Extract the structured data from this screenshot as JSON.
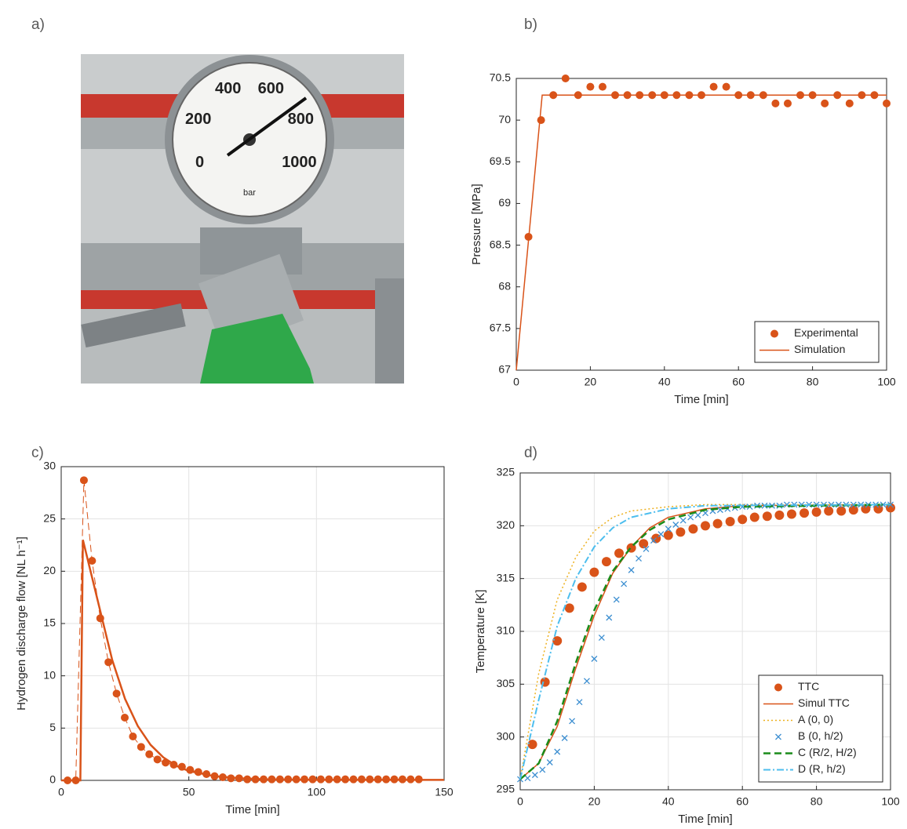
{
  "panels": [
    "a)",
    "b)",
    "c)",
    "d)"
  ],
  "photo": {
    "dial_labels": [
      0,
      200,
      400,
      600,
      800,
      1000
    ],
    "unit": "bar"
  },
  "chart_data": [
    {
      "type": "line",
      "xlabel": "Time [min]",
      "ylabel": "Pressure [MPa]",
      "xlim": [
        0,
        100
      ],
      "xticks": [
        0,
        20,
        40,
        60,
        80,
        100
      ],
      "ylim": [
        67,
        70.5
      ],
      "yticks": [
        67,
        67.5,
        68,
        68.5,
        69,
        69.5,
        70,
        70.5
      ],
      "grid": false,
      "legend": "lower right",
      "series": [
        {
          "name": "Experimental",
          "color": "#d95319",
          "marker": "circle",
          "x": [
            3.3,
            6.7,
            10,
            13.3,
            16.7,
            20,
            23.3,
            26.7,
            30,
            33.3,
            36.7,
            40,
            43.3,
            46.7,
            50,
            53.3,
            56.7,
            60,
            63.3,
            66.7,
            70,
            73.3,
            76.7,
            80,
            83.3,
            86.7,
            90,
            93.3,
            96.7,
            100
          ],
          "values": [
            68.6,
            70.0,
            70.3,
            70.5,
            70.3,
            70.4,
            70.4,
            70.3,
            70.3,
            70.3,
            70.3,
            70.3,
            70.3,
            70.3,
            70.3,
            70.4,
            70.4,
            70.3,
            70.3,
            70.3,
            70.2,
            70.2,
            70.3,
            70.3,
            70.2,
            70.3,
            70.2,
            70.3,
            70.3,
            70.2
          ]
        },
        {
          "name": "Simulation",
          "color": "#d95319",
          "linestyle": "solid",
          "x": [
            0,
            7,
            100
          ],
          "values": [
            67,
            70.3,
            70.3
          ]
        }
      ]
    },
    {
      "type": "line",
      "xlabel": "Time [min]",
      "ylabel": "Hydrogen discharge flow [NL h⁻¹]",
      "xlim": [
        0,
        150
      ],
      "xticks": [
        0,
        50,
        100,
        150
      ],
      "ylim": [
        0,
        30
      ],
      "yticks": [
        0,
        5,
        10,
        15,
        20,
        25,
        30
      ],
      "grid": true,
      "series": [
        {
          "color": "#d95319",
          "marker": "circle",
          "linestyle": "dashed",
          "x": [
            2.5,
            5.7,
            8.9,
            12.1,
            15.3,
            18.5,
            21.7,
            24.9,
            28.1,
            31.3,
            34.5,
            37.7,
            40.9,
            44.1,
            47.3,
            50.5,
            53.7,
            56.9,
            60.1,
            63.3,
            66.5,
            69.7,
            72.9,
            76.1,
            79.3,
            82.5,
            85.7,
            88.9,
            92.1,
            95.3,
            98.5,
            101.7,
            104.9,
            108.1,
            111.3,
            114.5,
            117.7,
            120.9,
            124.1,
            127.3,
            130.5,
            133.7,
            136.9,
            140.1
          ],
          "values": [
            0,
            0,
            28.7,
            21.0,
            15.5,
            11.3,
            8.3,
            6.0,
            4.2,
            3.2,
            2.5,
            2.0,
            1.7,
            1.5,
            1.3,
            1.0,
            0.8,
            0.6,
            0.4,
            0.3,
            0.2,
            0.2,
            0.1,
            0.1,
            0.1,
            0.1,
            0.1,
            0.1,
            0.1,
            0.1,
            0.1,
            0.1,
            0.1,
            0.1,
            0.1,
            0.1,
            0.1,
            0.1,
            0.1,
            0.1,
            0.1,
            0.1,
            0.1,
            0.1
          ]
        },
        {
          "color": "#d95319",
          "linestyle": "solid",
          "line_width": 2.5,
          "x": [
            0,
            7.5,
            8.5,
            12.5,
            15,
            20,
            25,
            30,
            35,
            40,
            45,
            50,
            60,
            70,
            80,
            100,
            150
          ],
          "values": [
            0,
            0,
            23,
            19,
            16.5,
            11.5,
            7.8,
            5.2,
            3.4,
            2.2,
            1.4,
            0.9,
            0.4,
            0.2,
            0.1,
            0.05,
            0.05
          ]
        }
      ]
    },
    {
      "type": "line",
      "xlabel": "Time [min]",
      "ylabel": "Temperature [K]",
      "xlim": [
        0,
        100
      ],
      "xticks": [
        0,
        20,
        40,
        60,
        80,
        100
      ],
      "ylim": [
        295,
        325
      ],
      "yticks": [
        295,
        300,
        305,
        310,
        315,
        320,
        325
      ],
      "grid": true,
      "legend": "lower right",
      "series": [
        {
          "name": "TTC",
          "color": "#d95319",
          "marker": "circle",
          "x": [
            3.3,
            6.7,
            10,
            13.3,
            16.7,
            20,
            23.3,
            26.7,
            30,
            33.3,
            36.7,
            40,
            43.3,
            46.7,
            50,
            53.3,
            56.7,
            60,
            63.3,
            66.7,
            70,
            73.3,
            76.7,
            80,
            83.3,
            86.7,
            90,
            93.3,
            96.7,
            100
          ],
          "values": [
            299.3,
            305.2,
            309.1,
            312.2,
            314.2,
            315.6,
            316.6,
            317.4,
            317.9,
            318.3,
            318.8,
            319.1,
            319.4,
            319.7,
            320.0,
            320.2,
            320.4,
            320.6,
            320.8,
            320.9,
            321.0,
            321.1,
            321.2,
            321.3,
            321.4,
            321.4,
            321.5,
            321.6,
            321.6,
            321.7
          ]
        },
        {
          "name": "Simul TTC",
          "color": "#d95319",
          "linestyle": "solid",
          "x": [
            0,
            5,
            10,
            15,
            20,
            25,
            30,
            35,
            40,
            50,
            60,
            100
          ],
          "values": [
            296,
            297.5,
            301,
            306.5,
            311.5,
            315.5,
            318,
            319.8,
            320.8,
            321.6,
            321.9,
            322
          ]
        },
        {
          "name": "A (0, 0)",
          "color": "#edb120",
          "linestyle": "dotted",
          "x": [
            0,
            5,
            10,
            15,
            20,
            25,
            30,
            40,
            50,
            100
          ],
          "values": [
            296,
            306,
            313,
            317,
            319.5,
            320.8,
            321.4,
            321.8,
            322,
            322
          ]
        },
        {
          "name": "B (0, h/2)",
          "color": "#3d8fd1",
          "marker": "cross",
          "x": [
            0,
            2,
            4,
            6,
            8,
            10,
            12,
            14,
            16,
            18,
            20,
            22,
            24,
            26,
            28,
            30,
            32,
            34,
            36,
            38,
            40,
            42,
            44,
            46,
            48,
            50,
            52,
            54,
            56,
            58,
            60,
            62,
            64,
            66,
            68,
            70,
            72,
            74,
            76,
            78,
            80,
            82,
            84,
            86,
            88,
            90,
            92,
            94,
            96,
            98,
            100
          ],
          "values": [
            296,
            296.1,
            296.4,
            296.9,
            297.6,
            298.6,
            299.9,
            301.5,
            303.3,
            305.3,
            307.4,
            309.4,
            311.3,
            313.0,
            314.5,
            315.8,
            316.9,
            317.8,
            318.6,
            319.2,
            319.7,
            320.1,
            320.5,
            320.8,
            321.0,
            321.2,
            321.4,
            321.5,
            321.6,
            321.7,
            321.8,
            321.8,
            321.9,
            321.9,
            321.9,
            321.9,
            322,
            322,
            322,
            322,
            322,
            322,
            322,
            322,
            322,
            322,
            322,
            322,
            322,
            322,
            322
          ]
        },
        {
          "name": "C (R/2, H/2)",
          "color": "#1a8c1a",
          "linestyle": "dashed",
          "line_width": 2.5,
          "x": [
            0,
            5,
            10,
            15,
            20,
            25,
            30,
            35,
            40,
            50,
            60,
            100
          ],
          "values": [
            296,
            297.5,
            301.5,
            307,
            312,
            315.7,
            318,
            319.6,
            320.6,
            321.5,
            321.8,
            322
          ]
        },
        {
          "name": "D (R, h/2)",
          "color": "#4dbeee",
          "linestyle": "dashdot",
          "line_width": 2,
          "x": [
            0,
            5,
            10,
            15,
            20,
            25,
            30,
            40,
            50,
            100
          ],
          "values": [
            296,
            303.5,
            310.5,
            315,
            318,
            319.8,
            320.8,
            321.6,
            321.9,
            322
          ]
        }
      ]
    }
  ]
}
